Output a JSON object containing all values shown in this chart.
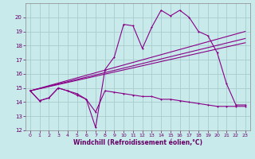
{
  "title": "",
  "xlabel": "Windchill (Refroidissement éolien,°C)",
  "ylabel": "",
  "xlim": [
    -0.5,
    23.5
  ],
  "ylim": [
    12,
    21
  ],
  "yticks": [
    12,
    13,
    14,
    15,
    16,
    17,
    18,
    19,
    20
  ],
  "xticks": [
    0,
    1,
    2,
    3,
    4,
    5,
    6,
    7,
    8,
    9,
    10,
    11,
    12,
    13,
    14,
    15,
    16,
    17,
    18,
    19,
    20,
    21,
    22,
    23
  ],
  "background_color": "#c8eaea",
  "grid_color": "#a8cccc",
  "line_color": "#880088",
  "line1_x": [
    0,
    1,
    2,
    3,
    4,
    5,
    6,
    7,
    8,
    9,
    10,
    11,
    12,
    13,
    14,
    15,
    16,
    17,
    18,
    19,
    20,
    21,
    22,
    23
  ],
  "line1_y": [
    14.8,
    14.1,
    14.3,
    15.0,
    14.8,
    14.6,
    14.2,
    12.2,
    16.3,
    17.2,
    19.5,
    19.4,
    17.8,
    19.3,
    20.5,
    20.1,
    20.5,
    20.0,
    19.0,
    18.7,
    17.5,
    15.3,
    13.8,
    13.8
  ],
  "line2_x": [
    0,
    1,
    2,
    3,
    4,
    5,
    6,
    7,
    8,
    9,
    10,
    11,
    12,
    13,
    14,
    15,
    16,
    17,
    18,
    19,
    20,
    21,
    22,
    23
  ],
  "line2_y": [
    14.8,
    14.1,
    14.3,
    15.0,
    14.8,
    14.5,
    14.2,
    13.3,
    14.8,
    14.7,
    14.6,
    14.5,
    14.4,
    14.4,
    14.2,
    14.2,
    14.1,
    14.0,
    13.9,
    13.8,
    13.7,
    13.7,
    13.7,
    13.7
  ],
  "line3_x": [
    0,
    23
  ],
  "line3_y": [
    14.8,
    19.0
  ],
  "line4_x": [
    0,
    23
  ],
  "line4_y": [
    14.8,
    18.5
  ],
  "line5_x": [
    0,
    23
  ],
  "line5_y": [
    14.8,
    18.2
  ]
}
